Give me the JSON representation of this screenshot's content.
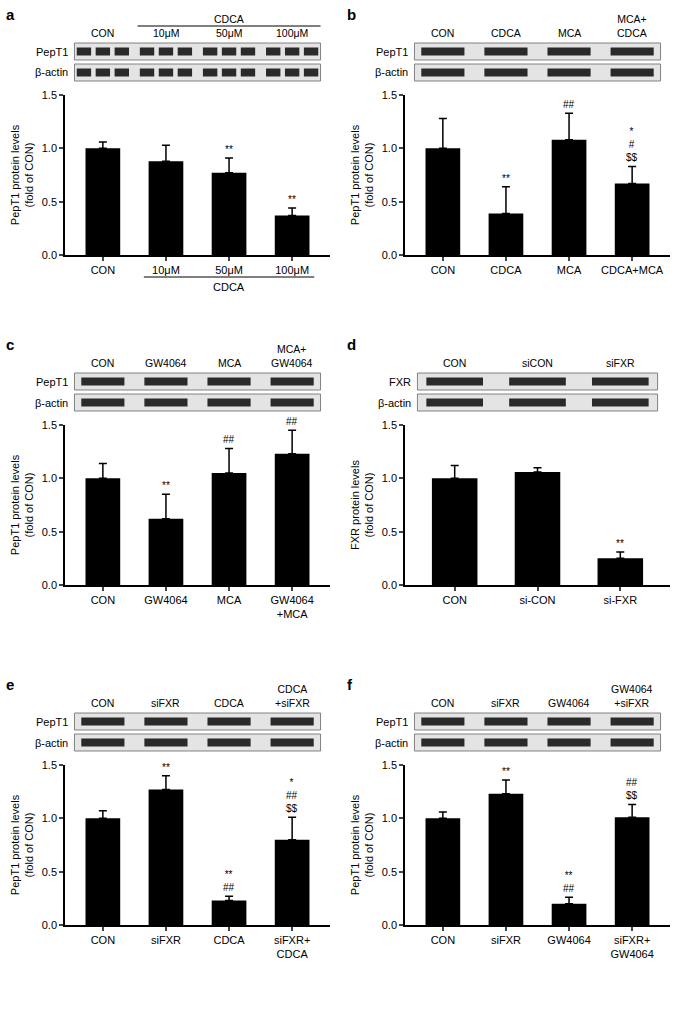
{
  "chart_data": [
    {
      "type": "bar",
      "panel": "a",
      "blot": {
        "rows": [
          "PepT1",
          "β-actin"
        ],
        "lanes": [
          "CON",
          "10μM",
          "50μM",
          "100μM"
        ],
        "group": {
          "label": "CDCA",
          "from": 1,
          "to": 3
        }
      },
      "categories": [
        "CON",
        "10μM",
        "50μM",
        "100μM"
      ],
      "category_group": {
        "label": "CDCA",
        "from": 1,
        "to": 3
      },
      "values": [
        1.0,
        0.88,
        0.77,
        0.37
      ],
      "errors": [
        0.06,
        0.15,
        0.14,
        0.07
      ],
      "significance": [
        null,
        null,
        "**",
        "**"
      ],
      "y_label": "PepT1 protein levels\n(fold of CON)",
      "color": "#000000",
      "ylim": [
        0,
        1.5
      ],
      "yticks": [
        {
          "value": 0,
          "label": "0.0"
        },
        0.5,
        {
          "value": 1,
          "label": "1.0"
        },
        1.5
      ]
    },
    {
      "type": "bar",
      "panel": "b",
      "blot": {
        "rows": [
          "PepT1",
          "β-actin"
        ],
        "lanes": [
          "CON",
          "CDCA",
          "MCA",
          "MCA+\nCDCA"
        ]
      },
      "categories": [
        "CON",
        "CDCA",
        "MCA",
        "CDCA+MCA"
      ],
      "values": [
        1.0,
        0.39,
        1.08,
        0.67
      ],
      "errors": [
        0.28,
        0.25,
        0.25,
        0.16
      ],
      "significance": [
        null,
        "**",
        "##",
        "*\n#\n$$"
      ],
      "y_label": "PepT1 protein levels\n(fold of CON)",
      "color": "#000000",
      "ylim": [
        0,
        1.5
      ],
      "yticks": [
        {
          "value": 0,
          "label": "0.0"
        },
        0.5,
        {
          "value": 1,
          "label": "1.0"
        },
        1.5
      ]
    },
    {
      "type": "bar",
      "panel": "c",
      "blot": {
        "rows": [
          "PepT1",
          "β-actin"
        ],
        "lanes": [
          "CON",
          "GW4064",
          "MCA",
          "MCA+\nGW4064"
        ]
      },
      "categories": [
        "CON",
        "GW4064",
        "MCA",
        "GW4064\n+MCA"
      ],
      "values": [
        1.0,
        0.62,
        1.05,
        1.23
      ],
      "errors": [
        0.14,
        0.23,
        0.23,
        0.22
      ],
      "significance": [
        null,
        "**",
        "##",
        "##"
      ],
      "y_label": "PepT1 protein levels\n(fold of CON)",
      "color": "#000000",
      "ylim": [
        0,
        1.5
      ],
      "yticks": [
        {
          "value": 0,
          "label": "0.0"
        },
        0.5,
        {
          "value": 1,
          "label": "1.0"
        },
        1.5
      ]
    },
    {
      "type": "bar",
      "panel": "d",
      "blot": {
        "rows": [
          "FXR",
          "β-actin"
        ],
        "lanes": [
          "CON",
          "siCON",
          "siFXR"
        ]
      },
      "categories": [
        "CON",
        "si-CON",
        "si-FXR"
      ],
      "values": [
        1.0,
        1.06,
        0.25
      ],
      "errors": [
        0.12,
        0.04,
        0.06
      ],
      "significance": [
        null,
        null,
        "**"
      ],
      "y_label": "FXR protein levels\n(fold of CON)",
      "color": "#000000",
      "ylim": [
        0,
        1.5
      ],
      "yticks": [
        {
          "value": 0,
          "label": "0.0"
        },
        0.5,
        {
          "value": 1,
          "label": "1.0"
        },
        1.5
      ]
    },
    {
      "type": "bar",
      "panel": "e",
      "blot": {
        "rows": [
          "PepT1",
          "β-actin"
        ],
        "lanes": [
          "CON",
          "siFXR",
          "CDCA",
          "CDCA\n+siFXR"
        ]
      },
      "categories": [
        "CON",
        "siFXR",
        "CDCA",
        "siFXR+\nCDCA"
      ],
      "values": [
        1.0,
        1.27,
        0.23,
        0.8
      ],
      "errors": [
        0.07,
        0.13,
        0.04,
        0.21
      ],
      "significance": [
        null,
        "**",
        "**\n##",
        "*\n##\n$$"
      ],
      "y_label": "PepT1 protein levels\n(fold of CON)",
      "color": "#000000",
      "ylim": [
        0,
        1.5
      ],
      "yticks": [
        {
          "value": 0,
          "label": "0.0"
        },
        0.5,
        {
          "value": 1,
          "label": "1.0"
        },
        1.5
      ]
    },
    {
      "type": "bar",
      "panel": "f",
      "blot": {
        "rows": [
          "PepT1",
          "β-actin"
        ],
        "lanes": [
          "CON",
          "siFXR",
          "GW4064",
          "GW4064\n+siFXR"
        ]
      },
      "categories": [
        "CON",
        "siFXR",
        "GW4064",
        "siFXR+\nGW4064"
      ],
      "values": [
        1.0,
        1.23,
        0.2,
        1.01
      ],
      "errors": [
        0.06,
        0.13,
        0.06,
        0.12
      ],
      "significance": [
        null,
        "**",
        "**\n##",
        "##\n$$"
      ],
      "y_label": "PepT1 protein levels\n(fold of CON)",
      "color": "#000000",
      "ylim": [
        0,
        1.5
      ],
      "yticks": [
        {
          "value": 0,
          "label": "0.0"
        },
        0.5,
        {
          "value": 1,
          "label": "1.0"
        },
        1.5
      ]
    }
  ]
}
